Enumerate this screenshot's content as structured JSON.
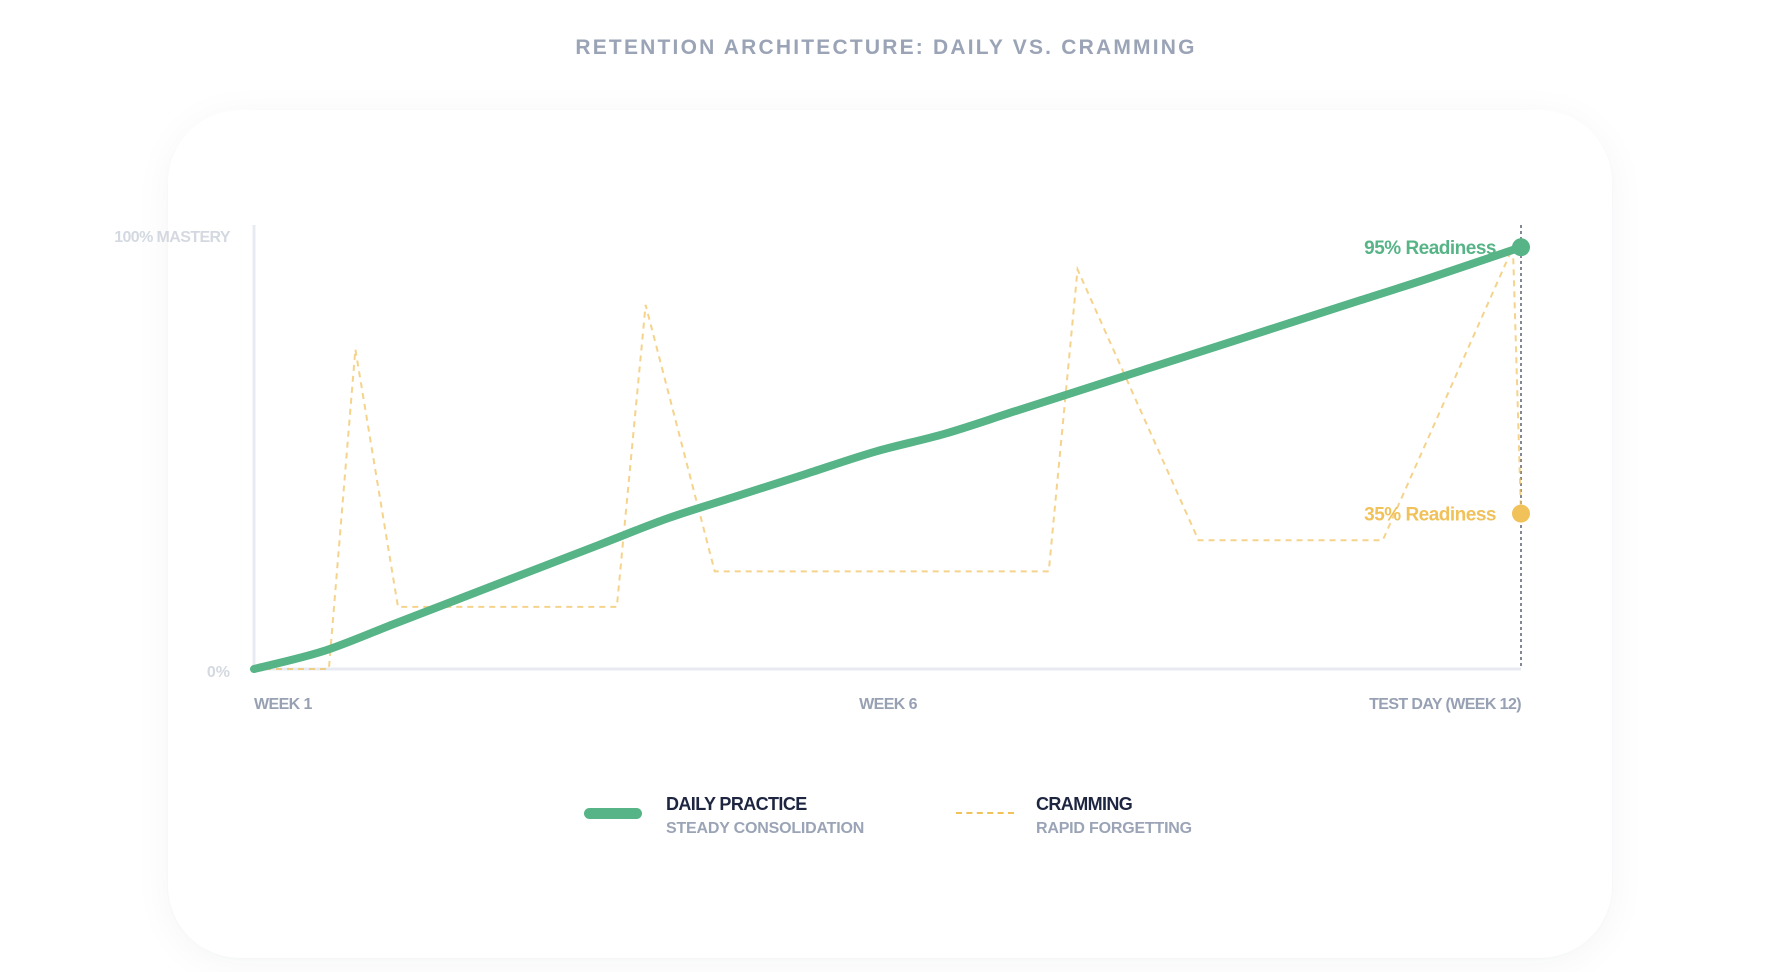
{
  "title": "RETENTION ARCHITECTURE: DAILY VS. CRAMMING",
  "chart_data": {
    "type": "line",
    "title": "RETENTION ARCHITECTURE: DAILY VS. CRAMMING",
    "x_range": [
      1,
      12
    ],
    "ylim": [
      0,
      100
    ],
    "x_tick_labels": [
      {
        "x": 1,
        "label": "WEEK 1"
      },
      {
        "x": 6,
        "label": "WEEK 6"
      },
      {
        "x": 12,
        "label": "TEST DAY (WEEK 12)"
      }
    ],
    "y_tick_labels": [
      {
        "y": 100,
        "label": "100% MASTERY"
      },
      {
        "y": 0,
        "label": "0%"
      }
    ],
    "grid": false,
    "legend_position": "bottom-center",
    "series": [
      {
        "name": "DAILY PRACTICE",
        "subtitle": "STEADY CONSOLIDATION",
        "style": "solid",
        "color": "#56b487",
        "x": [
          1,
          1.6,
          2.2,
          2.8,
          3.4,
          4.0,
          4.6,
          5.2,
          5.8,
          6.4,
          7.0,
          7.6,
          8.2,
          8.8,
          9.4,
          10.0,
          10.6,
          11.2,
          12.0
        ],
        "y": [
          0,
          4,
          10,
          16,
          22,
          28,
          34,
          39,
          44,
          49,
          53,
          58,
          63,
          68,
          73,
          78,
          83,
          88,
          95
        ],
        "end_label": "95% Readiness",
        "end_value": 95
      },
      {
        "name": "CRAMMING",
        "subtitle": "RAPID FORGETTING",
        "style": "dashed",
        "color": "#f1c15a",
        "x": [
          1,
          1.65,
          1.88,
          2.25,
          4.15,
          4.4,
          5.0,
          7.9,
          8.15,
          9.2,
          10.8,
          11.93,
          12.0
        ],
        "y": [
          0,
          0,
          72,
          14,
          14,
          82,
          22,
          22,
          90,
          29,
          29,
          95,
          35
        ],
        "end_label": "35% Readiness",
        "end_value": 35
      }
    ],
    "annotations": [
      {
        "text": "95% Readiness",
        "series": "DAILY PRACTICE"
      },
      {
        "text": "35% Readiness",
        "series": "CRAMMING"
      }
    ]
  },
  "legend": [
    {
      "label": "DAILY PRACTICE",
      "sublabel": "STEADY CONSOLIDATION",
      "color": "#56b487",
      "style": "solid"
    },
    {
      "label": "CRAMMING",
      "sublabel": "RAPID FORGETTING",
      "color": "#f1c15a",
      "style": "dashed"
    }
  ]
}
